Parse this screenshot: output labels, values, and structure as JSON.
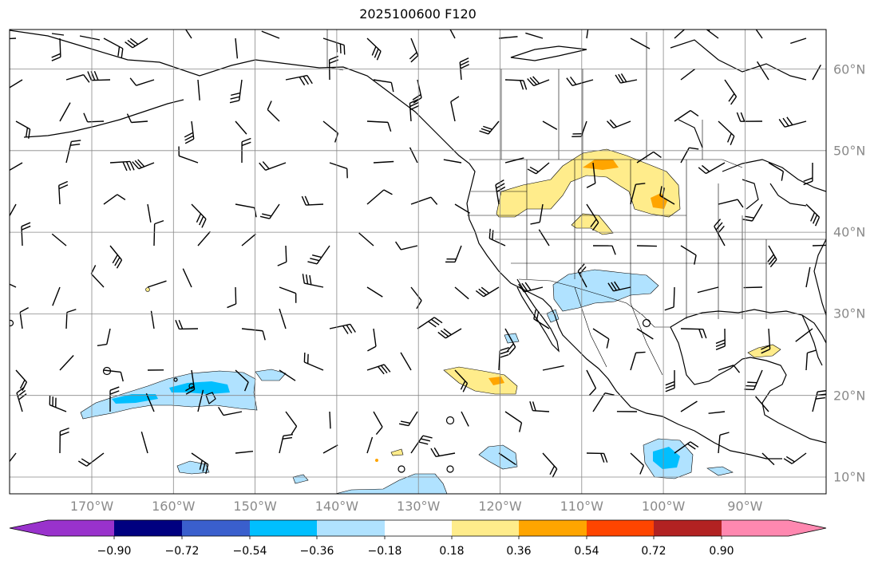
{
  "title": "2025100600 F120",
  "map": {
    "region": "North Pacific and North America",
    "lon_ticks": [
      {
        "lon": -170,
        "label": "170°W"
      },
      {
        "lon": -160,
        "label": "160°W"
      },
      {
        "lon": -150,
        "label": "150°W"
      },
      {
        "lon": -140,
        "label": "140°W"
      },
      {
        "lon": -130,
        "label": "130°W"
      },
      {
        "lon": -120,
        "label": "120°W"
      },
      {
        "lon": -110,
        "label": "110°W"
      },
      {
        "lon": -100,
        "label": "100°W"
      },
      {
        "lon": -90,
        "label": "90°W"
      }
    ],
    "lat_ticks": [
      {
        "lat": 60,
        "label": "60°N"
      },
      {
        "lat": 50,
        "label": "50°N"
      },
      {
        "lat": 40,
        "label": "40°N"
      },
      {
        "lat": 30,
        "label": "30°N"
      },
      {
        "lat": 20,
        "label": "20°N"
      },
      {
        "lat": 10,
        "label": "10°N"
      }
    ],
    "grid": true,
    "wind_barbs": true
  },
  "colorbar": {
    "colors": [
      "#9932cc",
      "#000080",
      "#3a5fcd",
      "#00bfff",
      "#b0e2ff",
      "#ffffff",
      "#ffec8b",
      "#ffa500",
      "#ff4500",
      "#b22222",
      "#ff88b0"
    ],
    "labels": [
      "−0.90",
      "−0.72",
      "−0.54",
      "−0.36",
      "−0.18",
      "0.18",
      "0.36",
      "0.54",
      "0.72",
      "0.90"
    ],
    "extend": "both"
  },
  "chart_data": {
    "type": "heatmap",
    "title": "2025100600 F120",
    "levels": [
      -0.9,
      -0.72,
      -0.54,
      -0.36,
      -0.18,
      0.18,
      0.36,
      0.54,
      0.72,
      0.9
    ],
    "lon_range": [
      -180,
      -80
    ],
    "lat_range": [
      8,
      65
    ],
    "anomaly_regions": [
      {
        "name": "hawaii-negative",
        "lon": -160,
        "lat": 21,
        "peak": -0.54
      },
      {
        "name": "southwest-us-negative",
        "lon": -110,
        "lat": 33,
        "peak": -0.36
      },
      {
        "name": "baja-negative",
        "lon": -118,
        "lat": 12,
        "peak": -0.36
      },
      {
        "name": "central-america-negative",
        "lon": -100,
        "lat": 11,
        "peak": -0.54
      },
      {
        "name": "rockies-positive",
        "lon": -108,
        "lat": 48,
        "peak": 0.54
      },
      {
        "name": "plains-positive",
        "lon": -100,
        "lat": 44,
        "peak": 0.54
      },
      {
        "name": "colorado-positive",
        "lon": -110,
        "lat": 42,
        "peak": 0.36
      },
      {
        "name": "pacific-positive",
        "lon": -122,
        "lat": 22,
        "peak": 0.54
      },
      {
        "name": "gulf-positive",
        "lon": -88,
        "lat": 25,
        "peak": 0.36
      }
    ]
  }
}
